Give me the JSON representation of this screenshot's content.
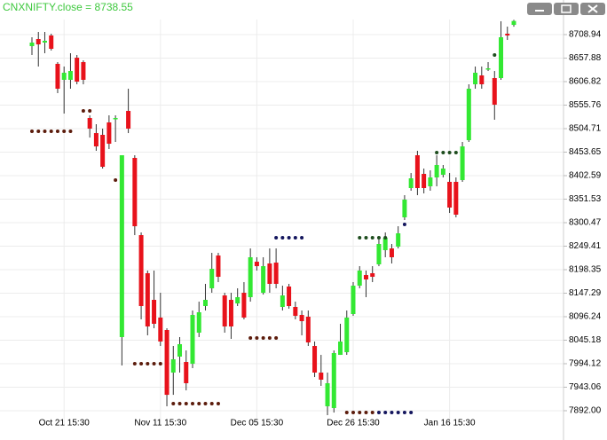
{
  "chart_data": {
    "type": "candlestick",
    "title": "CNXNIFTY.close = 8738.55",
    "categories": [
      null,
      null,
      null,
      null,
      null,
      "Oct 21 15:30",
      null,
      null,
      null,
      null,
      null,
      null,
      null,
      null,
      null,
      null,
      null,
      null,
      null,
      null,
      "Nov 11 15:30",
      null,
      null,
      null,
      null,
      null,
      null,
      null,
      null,
      null,
      null,
      null,
      null,
      null,
      null,
      "Dec 05 15:30",
      null,
      null,
      null,
      null,
      null,
      null,
      null,
      null,
      null,
      null,
      null,
      null,
      null,
      null,
      "Dec 26 15:30",
      null,
      null,
      null,
      null,
      null,
      null,
      null,
      null,
      null,
      null,
      null,
      null,
      null,
      null,
      "Jan 16 15:30",
      null,
      null,
      null,
      null,
      null,
      null,
      null,
      null,
      null,
      null
    ],
    "open": [
      8683.9,
      8699.3,
      8691.6,
      8707.0,
      8645.4,
      8610.7,
      8610.7,
      8658.8,
      8649.2,
      8527.8,
      8495.0,
      8491.2,
      8518.2,
      8525.9,
      8051.9,
      8543.2,
      8441.1,
      8273.4,
      8190.6,
      8132.8,
      8094.3,
      8067.3,
      7974.8,
      8009.5,
      7997.9,
      7994.0,
      8061.5,
      8119.3,
      8157.9,
      8229.1,
      8142.4,
      8132.8,
      8125.0,
      8148.2,
      8138.6,
      8215.6,
      8148.2,
      8211.8,
      8213.7,
      8117.4,
      8161.7,
      8117.4,
      8100.0,
      8096.2,
      8032.6,
      7974.8,
      7901.6,
      7897.7,
      8013.3,
      8019.1,
      8102.0,
      8163.6,
      8186.7,
      8190.6,
      8209.9,
      8240.7,
      8244.5,
      8248.4,
      8312.0,
      8375.6,
      8446.9,
      8406.4,
      8379.4,
      8398.7,
      8404.5,
      8389.1,
      8389.1,
      8392.9,
      8479.6,
      8601.0,
      8620.3,
      8633.8,
      8614.5,
      8614.5,
      8710.9,
      8730.0
    ],
    "high": [
      8703.2,
      8714.7,
      8714.7,
      8710.9,
      8649.2,
      8639.6,
      8668.5,
      8664.6,
      8653.1,
      8533.6,
      8514.3,
      8504.7,
      8533.6,
      8533.6,
      8446.9,
      8591.4,
      8446.9,
      8279.2,
      8196.4,
      8196.4,
      8148.2,
      8071.1,
      8032.6,
      8051.9,
      8023.0,
      8109.7,
      8128.9,
      8167.5,
      8234.9,
      8234.9,
      8148.2,
      8148.2,
      8157.9,
      8171.3,
      8244.5,
      8225.3,
      8225.3,
      8244.5,
      8244.5,
      8163.6,
      8167.5,
      8128.9,
      8109.7,
      8109.7,
      8042.3,
      8013.3,
      7974.8,
      8023.0,
      8080.8,
      8109.7,
      8171.3,
      8206.0,
      8196.4,
      8206.0,
      8263.8,
      8279.2,
      8254.2,
      8292.7,
      8360.2,
      8408.3,
      8456.5,
      8418.0,
      8414.1,
      8446.9,
      8425.7,
      8408.3,
      8398.7,
      8475.8,
      8601.0,
      8639.6,
      8639.6,
      8649.2,
      8629.9,
      8737.9,
      8726.3,
      8741.0
    ],
    "low": [
      8664.6,
      8639.6,
      8668.5,
      8674.3,
      8581.8,
      8537.4,
      8591.4,
      8601.0,
      8601.0,
      8485.3,
      8456.5,
      8418.0,
      8460.4,
      8475.8,
      7990.2,
      8495.0,
      8273.4,
      8090.4,
      8055.7,
      8071.1,
      8032.6,
      7901.6,
      7926.5,
      7974.8,
      7936.2,
      7984.4,
      8051.9,
      8109.7,
      8148.2,
      8171.3,
      8061.5,
      8048.0,
      8119.3,
      8090.4,
      8128.9,
      8196.4,
      8144.3,
      8148.2,
      8157.9,
      8109.7,
      8113.5,
      8090.4,
      8055.7,
      8032.6,
      7965.1,
      7945.9,
      7882.3,
      7888.0,
      8013.3,
      8013.3,
      8098.1,
      8157.9,
      8138.6,
      8171.3,
      8206.0,
      8225.3,
      8211.8,
      8244.5,
      8306.2,
      8369.8,
      8360.2,
      8364.0,
      8369.8,
      8379.4,
      8398.7,
      8321.6,
      8312.0,
      8389.1,
      8475.8,
      8591.4,
      8591.4,
      8629.9,
      8524.0,
      8610.7,
      8697.4,
      8726.0
    ],
    "close": [
      8691.6,
      8687.7,
      8695.5,
      8678.1,
      8591.4,
      8626.1,
      8629.9,
      8606.8,
      8610.7,
      8504.7,
      8466.1,
      8421.8,
      8471.9,
      8527.8,
      8446.9,
      8504.7,
      8292.7,
      8119.3,
      8075.0,
      8080.8,
      8042.3,
      7926.5,
      8003.7,
      8036.5,
      7951.7,
      8100.0,
      8105.8,
      8132.8,
      8200.2,
      8182.9,
      8075.0,
      8075.0,
      8138.6,
      8094.3,
      8225.3,
      8206.0,
      8206.0,
      8167.5,
      8167.5,
      8142.4,
      8119.3,
      8098.1,
      8086.5,
      8040.3,
      7974.8,
      7959.4,
      7951.7,
      8017.2,
      8042.3,
      8094.3,
      8163.6,
      8196.4,
      8177.1,
      8182.9,
      8254.2,
      8267.7,
      8225.3,
      8277.3,
      8350.5,
      8396.8,
      8375.6,
      8375.6,
      8398.7,
      8425.7,
      8418.0,
      8333.2,
      8317.8,
      8466.1,
      8591.4,
      8626.1,
      8601.0,
      8635.7,
      8556.7,
      8703.2,
      8707.0,
      8738.55
    ],
    "up_color": "#33e833",
    "down_color": "#e8121b",
    "wick_color": "#333333",
    "dots": [
      {
        "color": "#5c1c0c",
        "values": [
          8498.9,
          8498.9,
          8498.9,
          8498.9,
          8498.9,
          8498.9,
          8498.9,
          null,
          8543.2,
          8543.2,
          null,
          null,
          null,
          8392.9,
          null,
          null,
          7994.0,
          7994.0,
          7994.0,
          7994.0,
          7994.0,
          null,
          7907.3,
          7907.3,
          7907.3,
          7907.3,
          7907.3,
          7907.3,
          7907.3,
          7907.3,
          null,
          null,
          null,
          null,
          8049.9,
          8049.9,
          8049.9,
          8049.9,
          8049.9,
          null,
          null,
          null,
          null,
          null,
          null,
          null,
          null,
          null,
          null,
          7888.0,
          7888.0,
          7888.0,
          7888.0,
          7888.0,
          null,
          null,
          null,
          null,
          null,
          null,
          null,
          null,
          null,
          null,
          null,
          null,
          null,
          null,
          null,
          null,
          null,
          null,
          null,
          null,
          null,
          null
        ]
      },
      {
        "color": "#14165e",
        "values": [
          null,
          null,
          null,
          null,
          null,
          null,
          null,
          null,
          null,
          null,
          null,
          null,
          null,
          null,
          null,
          null,
          null,
          null,
          null,
          null,
          null,
          null,
          null,
          null,
          null,
          null,
          null,
          null,
          null,
          null,
          null,
          null,
          null,
          null,
          null,
          null,
          null,
          null,
          8267.7,
          8267.7,
          8267.7,
          8267.7,
          8267.7,
          null,
          null,
          null,
          null,
          null,
          null,
          null,
          null,
          null,
          null,
          null,
          7888.0,
          7888.0,
          7888.0,
          7888.0,
          7888.0,
          7888.0,
          null,
          null,
          null,
          null,
          null,
          null,
          null,
          null,
          null,
          null,
          null,
          null,
          null,
          null,
          null,
          null
        ]
      },
      {
        "color": "#1e4d1e",
        "values": [
          null,
          null,
          null,
          null,
          null,
          null,
          null,
          null,
          null,
          null,
          null,
          null,
          null,
          null,
          null,
          null,
          null,
          null,
          null,
          null,
          null,
          null,
          null,
          null,
          null,
          null,
          null,
          null,
          null,
          null,
          null,
          null,
          null,
          null,
          null,
          null,
          null,
          null,
          null,
          null,
          null,
          null,
          null,
          null,
          null,
          null,
          null,
          null,
          null,
          null,
          null,
          8267.7,
          8267.7,
          8267.7,
          8267.7,
          8267.7,
          null,
          null,
          null,
          null,
          null,
          null,
          null,
          8452.7,
          8452.7,
          8452.7,
          8452.7,
          null,
          null,
          null,
          null,
          null,
          8664.6,
          null,
          null,
          null
        ]
      },
      {
        "color": "#14165e",
        "values": [
          null,
          null,
          null,
          null,
          null,
          null,
          null,
          null,
          null,
          null,
          null,
          null,
          null,
          null,
          null,
          null,
          null,
          null,
          null,
          null,
          null,
          null,
          null,
          null,
          null,
          null,
          null,
          null,
          null,
          null,
          null,
          null,
          null,
          null,
          null,
          null,
          null,
          null,
          null,
          null,
          null,
          null,
          null,
          null,
          null,
          null,
          null,
          null,
          null,
          null,
          null,
          null,
          null,
          null,
          null,
          null,
          null,
          null,
          8296.6,
          null,
          null,
          null,
          null,
          null,
          null,
          null,
          null,
          null,
          null,
          null,
          null,
          null,
          null,
          null,
          null,
          null
        ]
      }
    ],
    "ylim": [
      7859.2,
      8741.7
    ],
    "yticks": [
      {
        "value": 7892,
        "label": "7892.00"
      },
      7943.06,
      7994.12,
      8045.18,
      8096.24,
      8147.29,
      8198.35,
      8249.41,
      8300.47,
      8351.53,
      8402.59,
      8453.65,
      8504.71,
      8555.76,
      8606.82,
      8657.88,
      8708.94
    ],
    "grid": true
  }
}
